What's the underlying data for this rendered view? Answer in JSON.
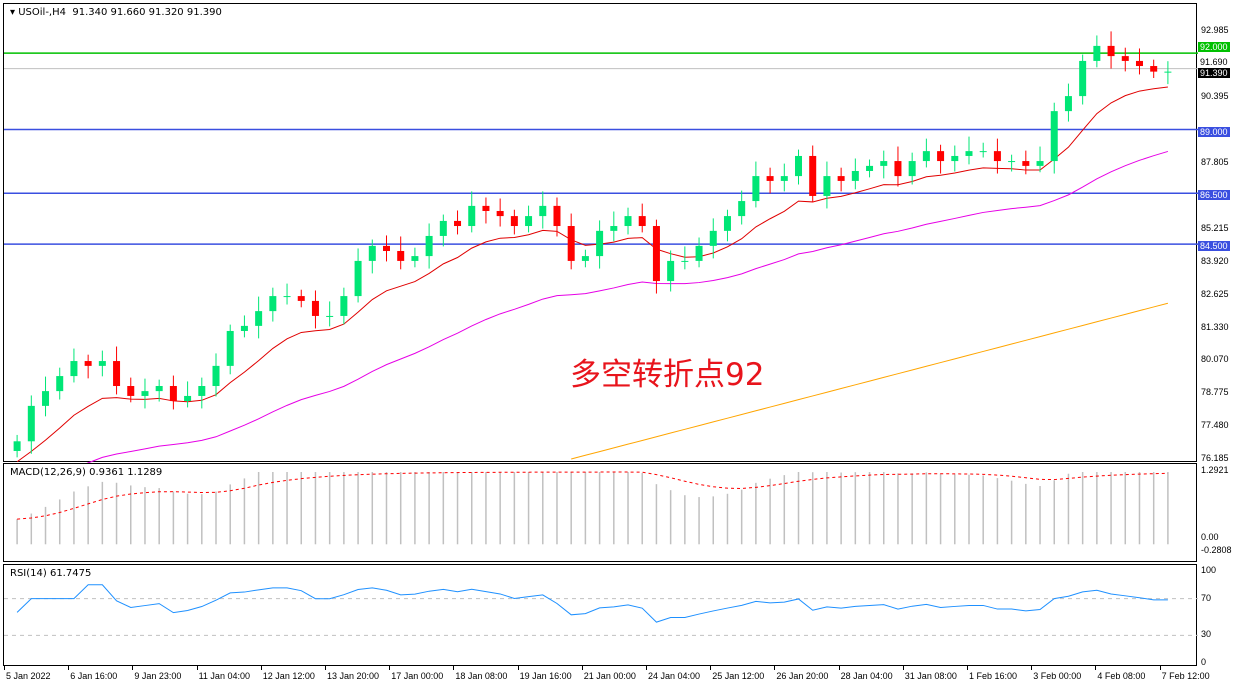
{
  "header": {
    "symbol": "USOil-,H4",
    "ohlc": "91.340 91.660 91.320 91.390",
    "menu_icon": "triangle-down-icon"
  },
  "annotation": "多空转折点92",
  "colors": {
    "bull": "#00e676",
    "bear": "#ff0000",
    "ma_fast": "#e00000",
    "ma_mid": "#e600e6",
    "ma_slow": "#ffa500",
    "level_blue": "#3a4fe0",
    "level_green": "#00c000",
    "macd_hist": "#c0c0c0",
    "macd_signal": "#ff0000",
    "rsi": "#1e90ff"
  },
  "price_axis": {
    "ticks": [
      "92.985",
      "90.395",
      "87.805",
      "85.215",
      "83.920",
      "82.625",
      "81.330",
      "80.070",
      "78.775",
      "77.480",
      "76.185"
    ],
    "range": [
      76.185,
      92.985
    ]
  },
  "levels": [
    {
      "price": 92.0,
      "label": "92.000",
      "color": "#00c000"
    },
    {
      "price": 89.0,
      "label": "89.000",
      "color": "#3a4fe0"
    },
    {
      "price": 86.5,
      "label": "86.500",
      "color": "#3a4fe0"
    },
    {
      "price": 84.5,
      "label": "84.500",
      "color": "#3a4fe0"
    }
  ],
  "bid": {
    "price": 91.39,
    "label": "91.390",
    "ask_label": "91.690"
  },
  "chart_data": {
    "type": "candlestick",
    "first_open": 76.5,
    "closes": [
      76.88,
      78.27,
      78.85,
      79.44,
      80.03,
      79.84,
      80.03,
      79.05,
      78.66,
      78.85,
      79.05,
      78.46,
      78.66,
      79.05,
      79.84,
      81.21,
      81.41,
      81.99,
      82.58,
      82.58,
      82.39,
      81.8,
      81.8,
      82.58,
      83.96,
      84.55,
      84.35,
      83.96,
      84.15,
      84.94,
      85.53,
      85.33,
      86.12,
      85.92,
      85.72,
      85.33,
      85.72,
      86.12,
      85.33,
      83.96,
      84.15,
      85.14,
      85.33,
      85.72,
      85.33,
      83.17,
      83.96,
      83.96,
      84.55,
      85.14,
      85.72,
      86.31,
      87.29,
      87.1,
      87.29,
      88.08,
      86.51,
      87.29,
      87.1,
      87.49,
      87.69,
      87.88,
      87.29,
      87.88,
      88.27,
      87.88,
      88.08,
      88.27,
      88.27,
      87.88,
      87.88,
      87.69,
      87.88,
      89.84,
      90.43,
      91.81,
      92.4,
      92.0,
      91.81,
      91.61,
      91.39,
      91.39
    ],
    "ma_slow_segment": {
      "from_candle": 39,
      "values": [
        76.185,
        82.3
      ]
    },
    "x_ticks": [
      "5 Jan 2022",
      "6 Jan 16:00",
      "9 Jan 23:00",
      "11 Jan 04:00",
      "12 Jan 12:00",
      "13 Jan 20:00",
      "17 Jan 00:00",
      "18 Jan 08:00",
      "19 Jan 16:00",
      "21 Jan 00:00",
      "24 Jan 04:00",
      "25 Jan 12:00",
      "26 Jan 20:00",
      "28 Jan 04:00",
      "31 Jan 08:00",
      "1 Feb 16:00",
      "3 Feb 00:00",
      "4 Feb 08:00",
      "7 Feb 12:00"
    ]
  },
  "macd": {
    "label": "MACD(12,26,9) 0.9361 1.1289",
    "ticks": [
      "1.2921",
      "0.00",
      "-0.2808"
    ],
    "range": [
      -0.2808,
      1.2921
    ]
  },
  "rsi": {
    "label": "RSI(14) 61.7475",
    "ticks": [
      "100",
      "70",
      "30",
      "0"
    ],
    "levels": [
      70,
      30
    ]
  }
}
